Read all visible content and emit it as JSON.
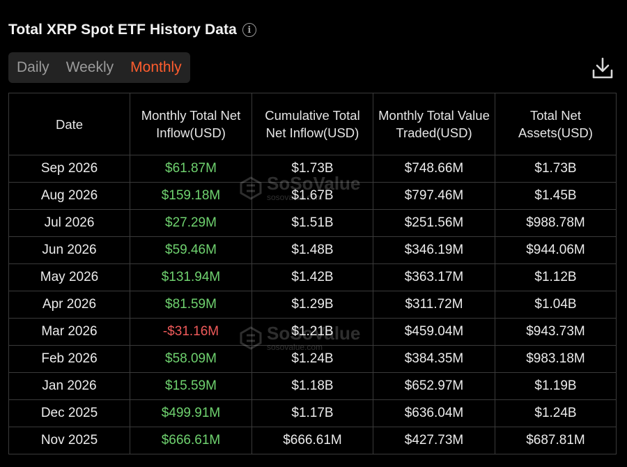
{
  "header": {
    "title": "Total XRP Spot ETF History Data",
    "info_icon": "info-icon"
  },
  "tabs": [
    {
      "label": "Daily",
      "active": false
    },
    {
      "label": "Weekly",
      "active": false
    },
    {
      "label": "Monthly",
      "active": true
    }
  ],
  "toolbar": {
    "download_icon": "download-icon"
  },
  "colors": {
    "accent": "#ff5d2e",
    "positive": "#6fd26f",
    "negative": "#ef5a5a",
    "background": "#000000"
  },
  "table": {
    "headers": [
      "Date",
      "Monthly Total Net Inflow(USD)",
      "Cumulative Total Net Inflow(USD)",
      "Monthly Total Value Traded(USD)",
      "Total Net Assets(USD)"
    ],
    "rows": [
      [
        "Sep 2026",
        "$61.87M",
        "$1.73B",
        "$748.66M",
        "$1.73B"
      ],
      [
        "Aug 2026",
        "$159.18M",
        "$1.67B",
        "$797.46M",
        "$1.45B"
      ],
      [
        "Jul 2026",
        "$27.29M",
        "$1.51B",
        "$251.56M",
        "$988.78M"
      ],
      [
        "Jun 2026",
        "$59.46M",
        "$1.48B",
        "$346.19M",
        "$944.06M"
      ],
      [
        "May 2026",
        "$131.94M",
        "$1.42B",
        "$363.17M",
        "$1.12B"
      ],
      [
        "Apr 2026",
        "$81.59M",
        "$1.29B",
        "$311.72M",
        "$1.04B"
      ],
      [
        "Mar 2026",
        "-$31.16M",
        "$1.21B",
        "$459.04M",
        "$943.73M"
      ],
      [
        "Feb 2026",
        "$58.09M",
        "$1.24B",
        "$384.35M",
        "$983.18M"
      ],
      [
        "Jan 2026",
        "$15.59M",
        "$1.18B",
        "$652.97M",
        "$1.19B"
      ],
      [
        "Dec 2025",
        "$499.91M",
        "$1.17B",
        "$636.04M",
        "$1.24B"
      ],
      [
        "Nov 2025",
        "$666.61M",
        "$666.61M",
        "$427.73M",
        "$687.81M"
      ]
    ]
  },
  "watermark": {
    "brand": "SoSoValue",
    "url": "sosovalue.com"
  }
}
